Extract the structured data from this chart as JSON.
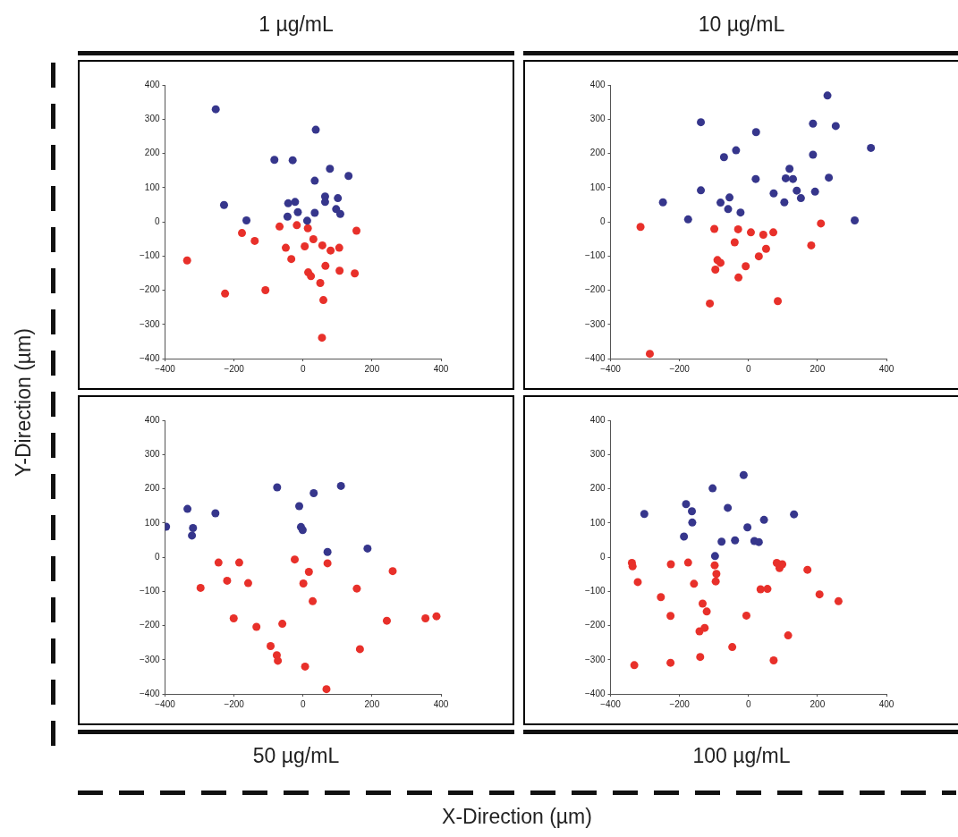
{
  "chart_data": [
    {
      "type": "scatter",
      "title": "1 µg/mL",
      "ylabel": "Y-Direction (µm)",
      "marker": "circle",
      "grid": false,
      "xlim": [
        -400,
        400
      ],
      "ylim": [
        -400,
        400
      ],
      "xticks": [
        -400,
        -200,
        0,
        200,
        400
      ],
      "yticks": [
        -400,
        -300,
        -200,
        -100,
        0,
        100,
        200,
        300,
        400
      ],
      "series": [
        {
          "color": "#36368c",
          "x": [
            -253,
            37,
            -83,
            -30,
            78,
            34,
            132,
            -229,
            -164,
            -43,
            -23,
            -15,
            -45,
            34,
            64,
            101,
            96,
            108,
            12,
            64
          ],
          "values": [
            329,
            269,
            181,
            180,
            155,
            120,
            134,
            49,
            4,
            54,
            58,
            28,
            15,
            26,
            74,
            69,
            37,
            23,
            3,
            58
          ]
        },
        {
          "color": "#e8302a",
          "x": [
            -336,
            -226,
            -109,
            -177,
            -140,
            -34,
            -50,
            -68,
            155,
            105,
            80,
            56,
            15,
            23,
            50,
            59,
            55,
            65,
            106,
            143,
            150,
            5,
            30,
            -18,
            14
          ],
          "values": [
            -113,
            -210,
            -200,
            -33,
            -56,
            -109,
            -76,
            -14,
            -26,
            -76,
            -84,
            -69,
            -148,
            -159,
            -179,
            -229,
            -339,
            -129,
            -143,
            null,
            -151,
            -72,
            -51,
            -10,
            -19
          ]
        }
      ]
    },
    {
      "type": "scatter",
      "title": "10 µg/mL",
      "marker": "circle",
      "grid": false,
      "xlim": [
        -400,
        400
      ],
      "ylim": [
        -400,
        400
      ],
      "xticks": [
        -400,
        -200,
        0,
        200,
        400
      ],
      "yticks": [
        -400,
        -300,
        -200,
        -100,
        0,
        100,
        200,
        300,
        400
      ],
      "series": [
        {
          "color": "#36368c",
          "x": [
            229,
            -138,
            22,
            187,
            253,
            -36,
            -71,
            187,
            355,
            119,
            21,
            108,
            129,
            233,
            -138,
            -248,
            -81,
            -55,
            -59,
            -23,
            -175,
            73,
            140,
            152,
            193,
            104,
            308
          ],
          "values": [
            369,
            291,
            262,
            287,
            280,
            209,
            189,
            196,
            216,
            155,
            125,
            127,
            125,
            129,
            92,
            57,
            56,
            71,
            37,
            27,
            7,
            83,
            91,
            69,
            88,
            57,
            4
          ]
        },
        {
          "color": "#e8302a",
          "x": [
            -313,
            -286,
            -112,
            -99,
            -40,
            -30,
            -90,
            -81,
            -96,
            -29,
            -8,
            30,
            51,
            43,
            72,
            182,
            210,
            85,
            7
          ],
          "values": [
            -15,
            -386,
            -239,
            -21,
            -60,
            -22,
            -112,
            -120,
            -140,
            -163,
            -130,
            -101,
            -79,
            -38,
            -31,
            -69,
            -5,
            -232,
            -31
          ]
        }
      ]
    },
    {
      "type": "scatter",
      "title": "50 µg/mL",
      "xlabel": "X-Direction (µm)",
      "marker": "circle",
      "grid": false,
      "xlim": [
        -400,
        400
      ],
      "ylim": [
        -400,
        400
      ],
      "xticks": [
        -400,
        -200,
        0,
        200,
        400
      ],
      "yticks": [
        -400,
        -300,
        -200,
        -100,
        0,
        100,
        200,
        300,
        400
      ],
      "series": [
        {
          "color": "#36368c",
          "x": [
            -397,
            -335,
            -254,
            -319,
            -322,
            -75,
            31,
            110,
            -11,
            -6,
            -1,
            71,
            187
          ],
          "values": [
            89,
            141,
            128,
            85,
            63,
            204,
            187,
            208,
            149,
            88,
            79,
            15,
            25
          ]
        },
        {
          "color": "#e8302a",
          "x": [
            -297,
            -245,
            -220,
            -185,
            -159,
            -201,
            -135,
            -60,
            -94,
            -76,
            -73,
            6,
            68,
            28,
            1,
            17,
            71,
            156,
            165,
            243,
            260,
            355,
            387,
            -24
          ],
          "values": [
            -90,
            -16,
            -69,
            -16,
            -76,
            -179,
            -204,
            -195,
            -260,
            -287,
            -303,
            -320,
            -386,
            -129,
            -77,
            -43,
            -18,
            -92,
            -269,
            -186,
            -41,
            -179,
            -173,
            -7
          ]
        }
      ]
    },
    {
      "type": "scatter",
      "title": "100 µg/mL",
      "marker": "circle",
      "grid": false,
      "xlim": [
        -400,
        400
      ],
      "ylim": [
        -400,
        400
      ],
      "xticks": [
        -400,
        -200,
        0,
        200,
        400
      ],
      "yticks": [
        -400,
        -300,
        -200,
        -100,
        0,
        100,
        200,
        300,
        400
      ],
      "series": [
        {
          "color": "#36368c",
          "x": [
            -302,
            -104,
            -14,
            -181,
            -164,
            -163,
            -187,
            -60,
            -3,
            45,
            132,
            -78,
            -39,
            17,
            30,
            -97
          ],
          "values": [
            126,
            201,
            240,
            155,
            134,
            101,
            60,
            144,
            87,
            109,
            125,
            45,
            49,
            47,
            44,
            3
          ]
        },
        {
          "color": "#e8302a",
          "x": [
            -338,
            -336,
            -321,
            -254,
            -225,
            -175,
            -158,
            -226,
            -133,
            -121,
            -127,
            -142,
            -140,
            -226,
            -331,
            -47,
            -6,
            73,
            115,
            206,
            261,
            171,
            90,
            98,
            82,
            35,
            55,
            -98,
            -93,
            -95
          ],
          "values": [
            -17,
            -27,
            -73,
            -117,
            -21,
            -16,
            -78,
            -172,
            -136,
            -159,
            -207,
            -217,
            -292,
            -309,
            -316,
            -263,
            -171,
            -302,
            -229,
            -109,
            -129,
            -37,
            -32,
            -21,
            -17,
            -94,
            -93,
            -24,
            -49,
            -71
          ]
        }
      ]
    }
  ]
}
